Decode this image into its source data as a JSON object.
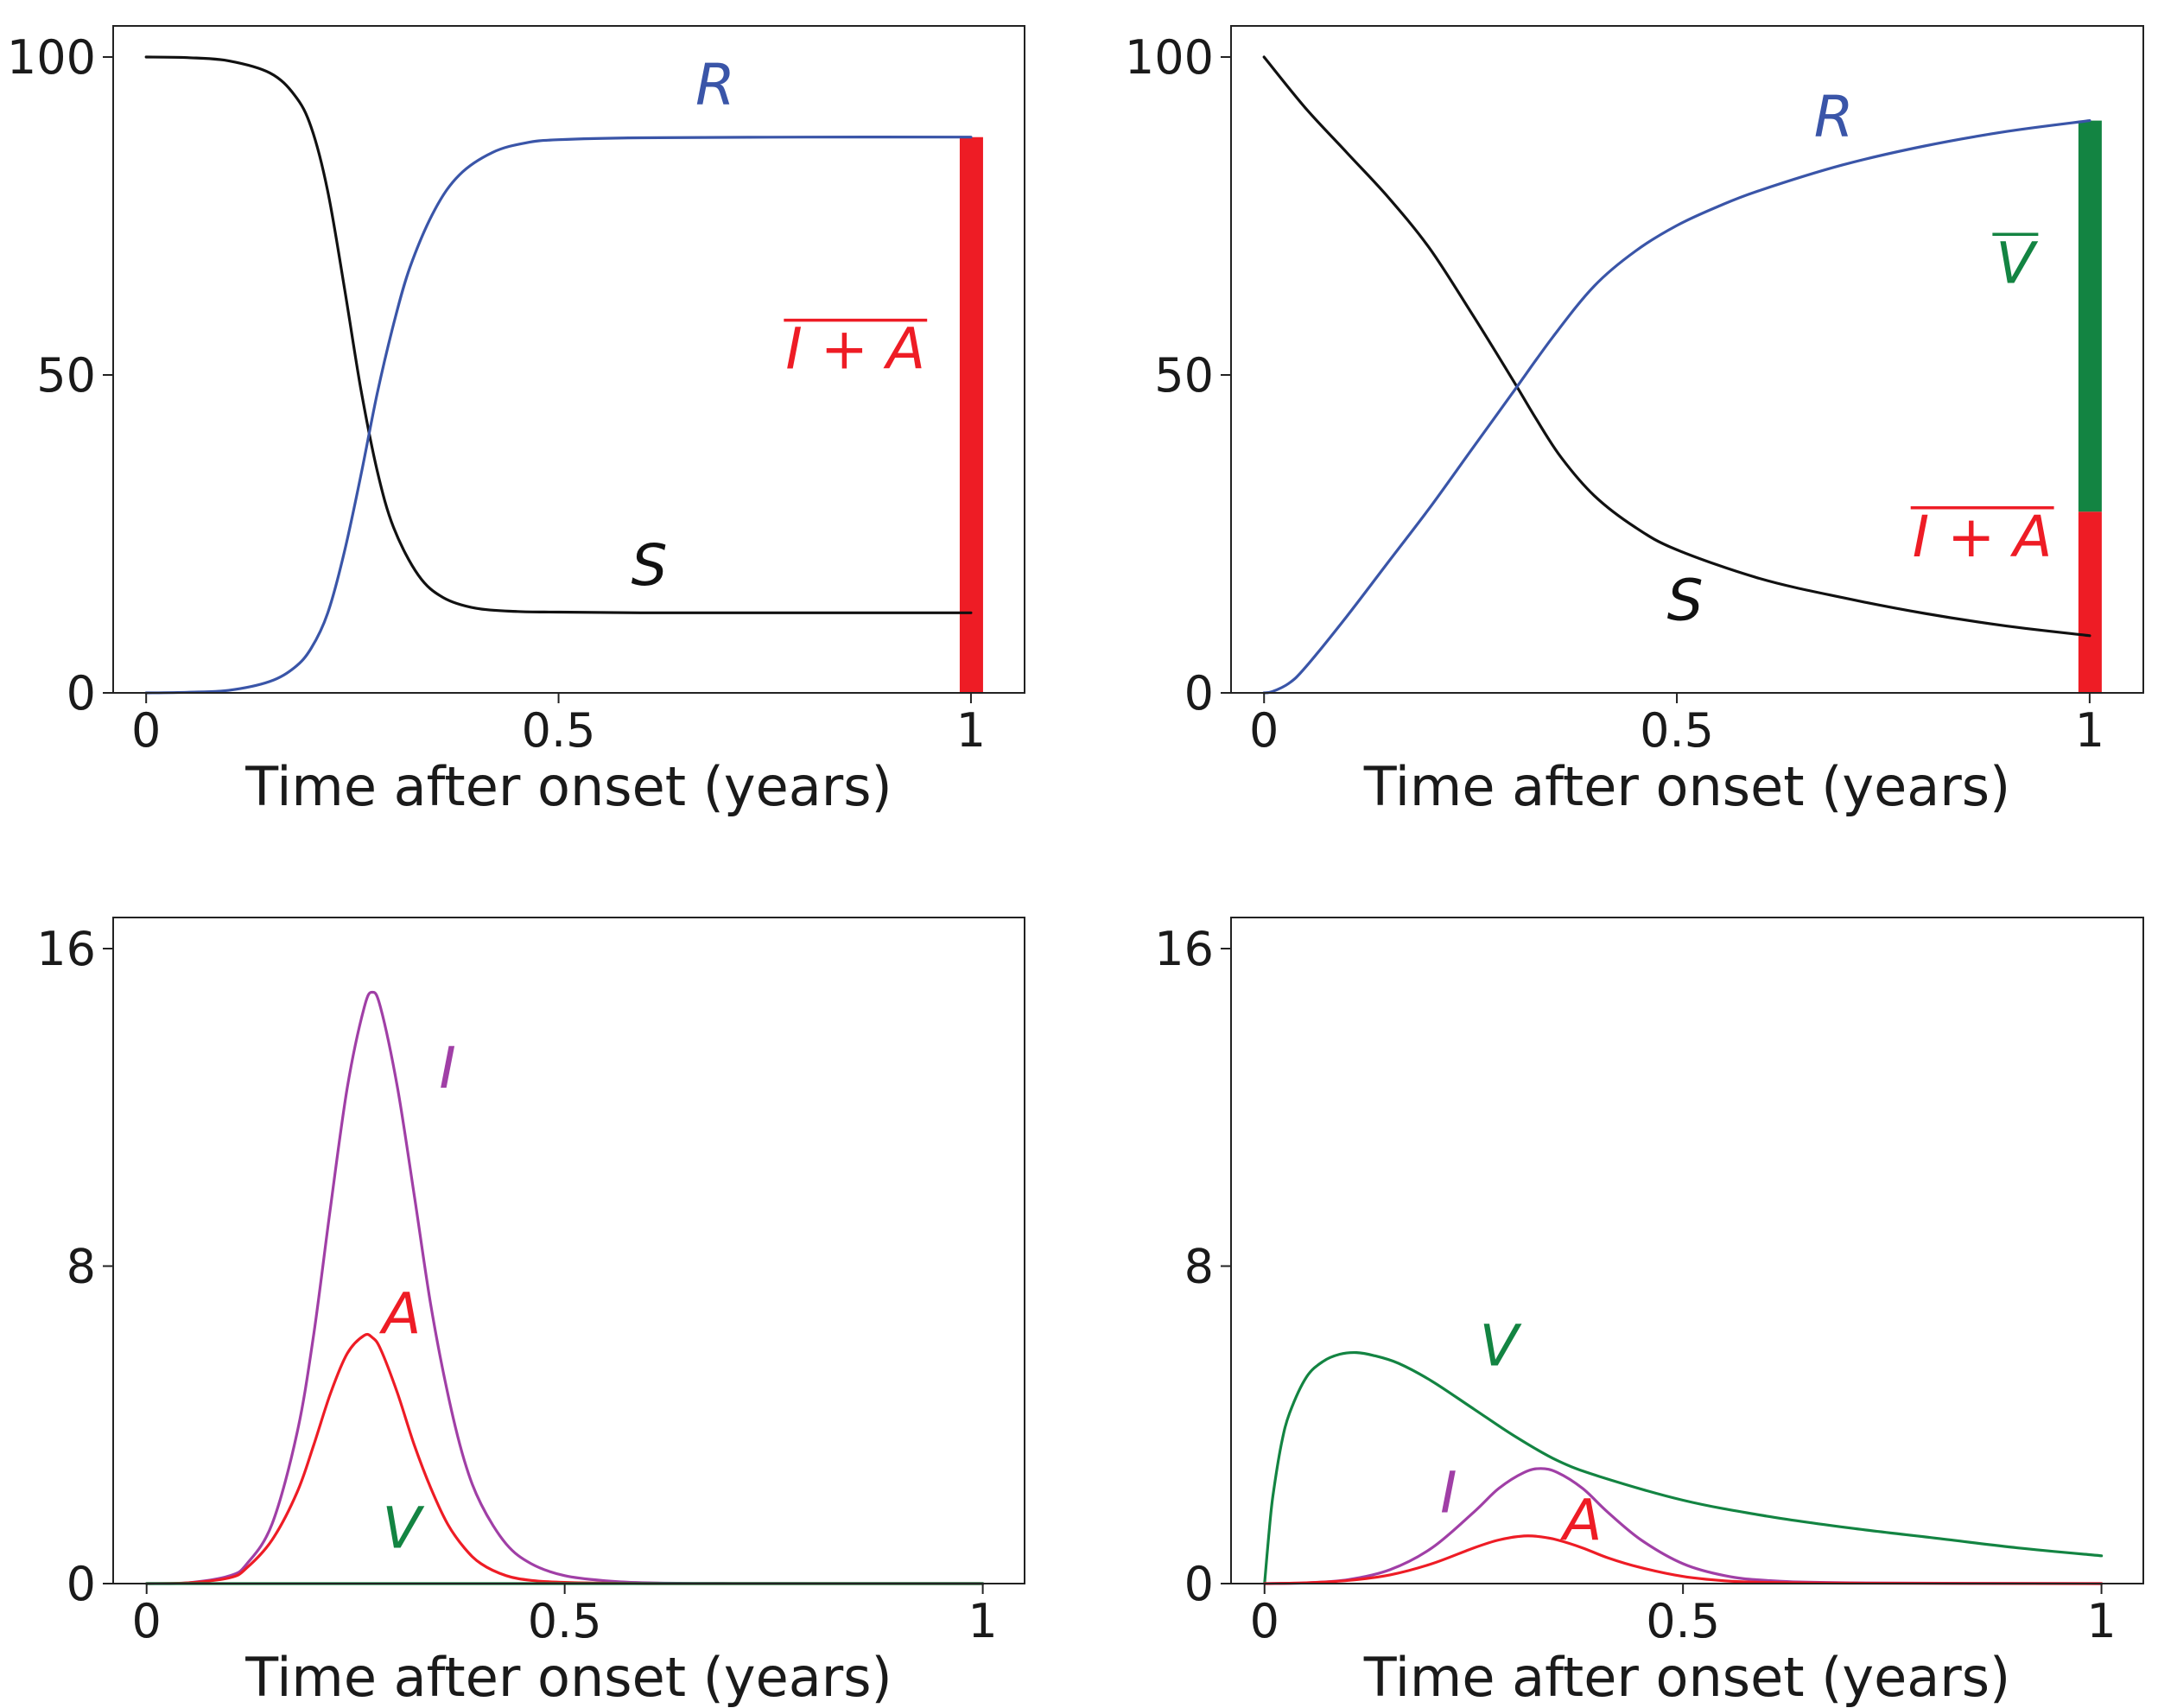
{
  "chart_data": [
    {
      "type": "line",
      "panel": "top-left",
      "xlabel": "Time after onset (years)",
      "ylabel": "",
      "xlim": [
        -0.04,
        1.065
      ],
      "ylim": [
        0,
        100
      ],
      "xticks": [
        {
          "v": 0,
          "t": "0"
        },
        {
          "v": 0.5,
          "t": "0.5"
        },
        {
          "v": 1,
          "t": "1"
        }
      ],
      "yticks": [
        {
          "v": 0,
          "t": "0"
        },
        {
          "v": 50,
          "t": "50"
        },
        {
          "v": 100,
          "t": "100"
        }
      ],
      "series": [
        {
          "name": "S",
          "color": "#111111",
          "x": [
            0,
            0.05,
            0.1,
            0.15,
            0.18,
            0.2,
            0.22,
            0.24,
            0.26,
            0.28,
            0.3,
            0.33,
            0.36,
            0.4,
            0.45,
            0.5,
            0.6,
            0.8,
            1.0
          ],
          "y": [
            100,
            99.9,
            99.4,
            97.5,
            94,
            89,
            79,
            64,
            48,
            35,
            26,
            18.5,
            15,
            13.3,
            12.8,
            12.7,
            12.6,
            12.6,
            12.6
          ]
        },
        {
          "name": "R",
          "color": "#3a55a8",
          "x": [
            0,
            0.05,
            0.1,
            0.15,
            0.18,
            0.2,
            0.22,
            0.24,
            0.26,
            0.28,
            0.3,
            0.32,
            0.35,
            0.38,
            0.42,
            0.46,
            0.5,
            0.6,
            0.8,
            1.0
          ],
          "y": [
            0,
            0.1,
            0.4,
            1.8,
            4,
            7,
            12.5,
            22,
            34,
            47,
            58,
            67,
            76,
            81.5,
            85,
            86.5,
            87,
            87.3,
            87.4,
            87.4
          ]
        }
      ],
      "bars": [
        {
          "name": "I+A",
          "from": 0,
          "to": 87.4,
          "color": "#ee1c25"
        }
      ],
      "labels": [
        {
          "text": "R",
          "x": 0.69,
          "y": 92.5,
          "color": "#3a55a8",
          "overline": false
        },
        {
          "text": "S",
          "x": 0.61,
          "y": 17,
          "color": "#111111",
          "overline": false
        },
        {
          "text": "I + A",
          "x": 0.86,
          "y": 51,
          "color": "#ee1c25",
          "overline": true
        }
      ]
    },
    {
      "type": "line",
      "panel": "top-right",
      "xlabel": "Time after onset (years)",
      "ylabel": "",
      "xlim": [
        -0.04,
        1.065
      ],
      "ylim": [
        0,
        100
      ],
      "xticks": [
        {
          "v": 0,
          "t": "0"
        },
        {
          "v": 0.5,
          "t": "0.5"
        },
        {
          "v": 1,
          "t": "1"
        }
      ],
      "yticks": [
        {
          "v": 0,
          "t": "0"
        },
        {
          "v": 50,
          "t": "50"
        },
        {
          "v": 100,
          "t": "100"
        }
      ],
      "series": [
        {
          "name": "S",
          "color": "#111111",
          "x": [
            0,
            0.05,
            0.1,
            0.15,
            0.2,
            0.25,
            0.3,
            0.33,
            0.36,
            0.4,
            0.45,
            0.5,
            0.6,
            0.7,
            0.8,
            0.9,
            1.0
          ],
          "y": [
            100,
            92,
            85,
            78,
            70,
            60,
            49.5,
            43,
            37,
            31,
            26,
            22.5,
            18,
            15,
            12.5,
            10.5,
            9
          ]
        },
        {
          "name": "R",
          "color": "#3a55a8",
          "x": [
            0,
            0.01,
            0.03,
            0.05,
            0.1,
            0.15,
            0.2,
            0.25,
            0.3,
            0.35,
            0.4,
            0.45,
            0.5,
            0.55,
            0.6,
            0.7,
            0.8,
            0.9,
            1.0
          ],
          "y": [
            0,
            0.2,
            1.5,
            4,
            12,
            20.5,
            29,
            38,
            47,
            56,
            64,
            69.5,
            73.5,
            76.5,
            79,
            83,
            86,
            88.3,
            90
          ]
        }
      ],
      "bars": [
        {
          "name": "I+A",
          "from": 0,
          "to": 28.5,
          "color": "#ee1c25"
        },
        {
          "name": "V",
          "from": 28.5,
          "to": 90,
          "color": "#138442"
        }
      ],
      "labels": [
        {
          "text": "R",
          "x": 0.69,
          "y": 87.5,
          "color": "#3a55a8",
          "overline": false
        },
        {
          "text": "V",
          "x": 0.91,
          "y": 64.5,
          "color": "#138442",
          "overline": true
        },
        {
          "text": "I + A",
          "x": 0.87,
          "y": 21.5,
          "color": "#ee1c25",
          "overline": true
        },
        {
          "text": "S",
          "x": 0.51,
          "y": 11.5,
          "color": "#111111",
          "overline": false
        }
      ]
    },
    {
      "type": "line",
      "panel": "bottom-left",
      "xlabel": "Time after onset (years)",
      "ylabel": "",
      "xlim": [
        -0.04,
        1.05
      ],
      "ylim": [
        0,
        16
      ],
      "xticks": [
        {
          "v": 0,
          "t": "0"
        },
        {
          "v": 0.5,
          "t": "0.5"
        },
        {
          "v": 1,
          "t": "1"
        }
      ],
      "yticks": [
        {
          "v": 0,
          "t": "0"
        },
        {
          "v": 8,
          "t": "8"
        },
        {
          "v": 16,
          "t": "16"
        }
      ],
      "series": [
        {
          "name": "I",
          "color": "#a03fa6",
          "x": [
            0,
            0.05,
            0.1,
            0.12,
            0.15,
            0.18,
            0.2,
            0.22,
            0.24,
            0.26,
            0.27,
            0.28,
            0.3,
            0.32,
            0.34,
            0.36,
            0.38,
            0.4,
            0.43,
            0.46,
            0.5,
            0.55,
            0.6,
            0.7,
            1.0
          ],
          "y": [
            0,
            0.02,
            0.2,
            0.5,
            1.5,
            3.8,
            6.3,
            9.5,
            12.5,
            14.5,
            14.9,
            14.5,
            12.5,
            9.8,
            7,
            4.8,
            3.1,
            2,
            1.0,
            0.5,
            0.2,
            0.07,
            0.02,
            0.005,
            0
          ]
        },
        {
          "name": "A",
          "color": "#ee1c25",
          "x": [
            0,
            0.05,
            0.1,
            0.12,
            0.15,
            0.18,
            0.2,
            0.22,
            0.24,
            0.26,
            0.27,
            0.28,
            0.3,
            0.32,
            0.34,
            0.36,
            0.38,
            0.4,
            0.43,
            0.46,
            0.5,
            0.55,
            0.6,
            0.7,
            1.0
          ],
          "y": [
            0,
            0.02,
            0.15,
            0.4,
            1.1,
            2.3,
            3.5,
            4.8,
            5.8,
            6.25,
            6.2,
            5.9,
            4.8,
            3.5,
            2.4,
            1.5,
            0.9,
            0.5,
            0.2,
            0.08,
            0.03,
            0.01,
            0,
            0,
            0
          ]
        },
        {
          "name": "V",
          "color": "#138442",
          "x": [
            0,
            1.0
          ],
          "y": [
            0,
            0
          ]
        }
      ],
      "bars": [],
      "labels": [
        {
          "text": "I",
          "x": 0.36,
          "y": 12.5,
          "color": "#a03fa6",
          "overline": false
        },
        {
          "text": "A",
          "x": 0.305,
          "y": 6.3,
          "color": "#ee1c25",
          "overline": false
        },
        {
          "text": "V",
          "x": 0.305,
          "y": 0.9,
          "color": "#138442",
          "overline": false
        }
      ]
    },
    {
      "type": "line",
      "panel": "bottom-right",
      "xlabel": "Time after onset (years)",
      "ylabel": "",
      "xlim": [
        -0.04,
        1.05
      ],
      "ylim": [
        0,
        16
      ],
      "xticks": [
        {
          "v": 0,
          "t": "0"
        },
        {
          "v": 0.5,
          "t": "0.5"
        },
        {
          "v": 1,
          "t": "1"
        }
      ],
      "yticks": [
        {
          "v": 0,
          "t": "0"
        },
        {
          "v": 8,
          "t": "8"
        },
        {
          "v": 16,
          "t": "16"
        }
      ],
      "series": [
        {
          "name": "V",
          "color": "#138442",
          "x": [
            0,
            0.005,
            0.01,
            0.02,
            0.03,
            0.05,
            0.07,
            0.09,
            0.11,
            0.13,
            0.16,
            0.2,
            0.25,
            0.3,
            0.35,
            0.4,
            0.5,
            0.6,
            0.7,
            0.8,
            0.9,
            1.0
          ],
          "y": [
            0,
            1.2,
            2.2,
            3.5,
            4.3,
            5.2,
            5.6,
            5.78,
            5.82,
            5.75,
            5.55,
            5.1,
            4.4,
            3.7,
            3.1,
            2.7,
            2.1,
            1.7,
            1.4,
            1.15,
            0.9,
            0.7
          ]
        },
        {
          "name": "I",
          "color": "#a03fa6",
          "x": [
            0,
            0.05,
            0.1,
            0.15,
            0.2,
            0.25,
            0.28,
            0.31,
            0.33,
            0.35,
            0.38,
            0.41,
            0.45,
            0.5,
            0.55,
            0.6,
            0.7,
            1.0
          ],
          "y": [
            0,
            0.02,
            0.1,
            0.35,
            0.9,
            1.8,
            2.4,
            2.8,
            2.9,
            2.8,
            2.4,
            1.8,
            1.1,
            0.5,
            0.2,
            0.08,
            0.02,
            0
          ]
        },
        {
          "name": "A",
          "color": "#ee1c25",
          "x": [
            0,
            0.05,
            0.1,
            0.15,
            0.2,
            0.25,
            0.28,
            0.31,
            0.33,
            0.35,
            0.38,
            0.41,
            0.45,
            0.5,
            0.55,
            0.6,
            0.7,
            1.0
          ],
          "y": [
            0,
            0.02,
            0.08,
            0.22,
            0.5,
            0.9,
            1.1,
            1.2,
            1.18,
            1.1,
            0.9,
            0.65,
            0.4,
            0.18,
            0.07,
            0.03,
            0.01,
            0
          ]
        }
      ],
      "bars": [],
      "labels": [
        {
          "text": "V",
          "x": 0.28,
          "y": 5.5,
          "color": "#138442",
          "overline": false
        },
        {
          "text": "I",
          "x": 0.22,
          "y": 1.8,
          "color": "#a03fa6",
          "overline": false
        },
        {
          "text": "A",
          "x": 0.38,
          "y": 1.1,
          "color": "#ee1c25",
          "overline": false
        }
      ]
    }
  ]
}
